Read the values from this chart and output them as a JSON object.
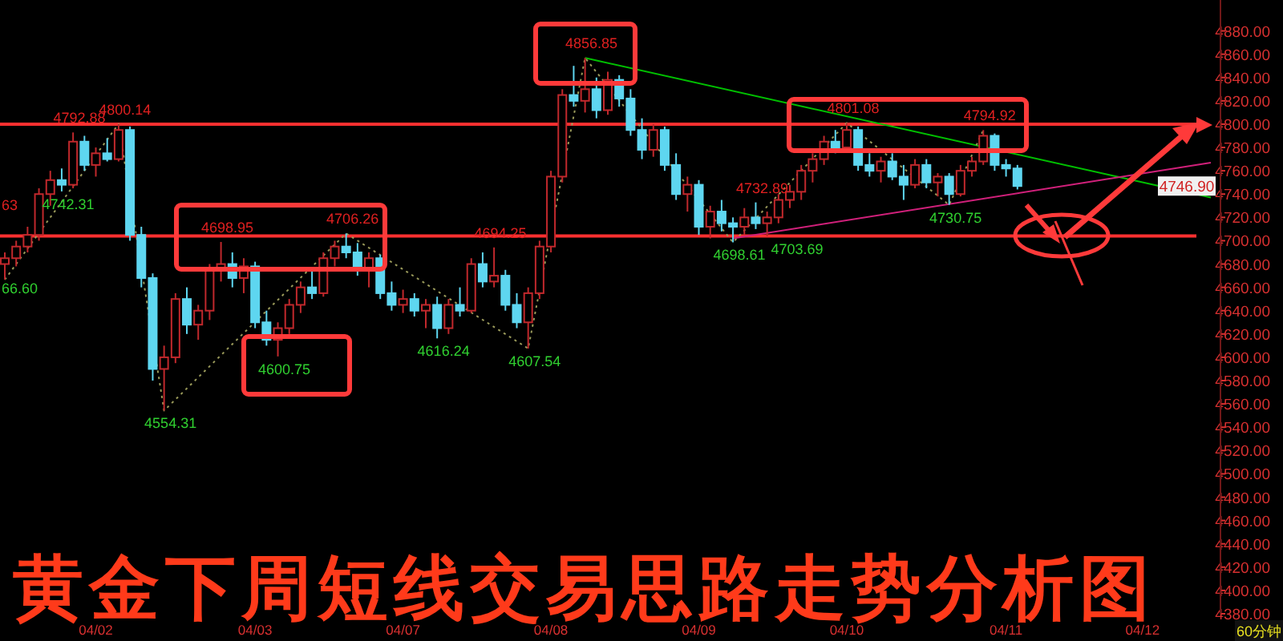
{
  "chart_data": {
    "type": "candlestick",
    "title": "黄金下周短线交易思路走势分析图",
    "categories": [
      null,
      null,
      null,
      null,
      null,
      null,
      null,
      null,
      "04/02",
      null,
      null,
      null,
      null,
      null,
      null,
      null,
      null,
      null,
      null,
      null,
      null,
      null,
      "04/03",
      null,
      null,
      null,
      null,
      null,
      null,
      null,
      null,
      null,
      null,
      null,
      null,
      "04/07",
      null,
      null,
      null,
      null,
      null,
      null,
      null,
      null,
      null,
      null,
      null,
      null,
      "04/08",
      null,
      null,
      null,
      null,
      null,
      null,
      null,
      null,
      null,
      null,
      null,
      null,
      "04/09",
      null,
      null,
      null,
      null,
      null,
      null,
      null,
      null,
      null,
      null,
      null,
      null,
      "04/10",
      null,
      null,
      null,
      null,
      null,
      null,
      null,
      null,
      null,
      null,
      null,
      null,
      null,
      "04/11",
      null,
      null,
      null,
      null,
      null,
      null,
      null,
      null,
      null,
      null,
      null,
      "04/12",
      null,
      null,
      null,
      null,
      null,
      null
    ],
    "ohlc": [
      [
        4680,
        4690,
        4666.6,
        4685
      ],
      [
        4685,
        4700,
        4678,
        4695
      ],
      [
        4695,
        4712,
        4690,
        4705
      ],
      [
        4705,
        4745,
        4700,
        4740
      ],
      [
        4740,
        4760,
        4730,
        4752
      ],
      [
        4752,
        4762,
        4742.31,
        4748
      ],
      [
        4748,
        4792.88,
        4745,
        4785
      ],
      [
        4785,
        4790,
        4760,
        4765
      ],
      [
        4765,
        4780,
        4755,
        4775
      ],
      [
        4775,
        4788,
        4768,
        4770
      ],
      [
        4770,
        4800.14,
        4768,
        4795
      ],
      [
        4795,
        4798,
        4700,
        4705
      ],
      [
        4705,
        4712,
        4660,
        4668
      ],
      [
        4668,
        4672,
        4580,
        4590
      ],
      [
        4590,
        4610,
        4554.31,
        4600
      ],
      [
        4600,
        4655,
        4595,
        4650
      ],
      [
        4650,
        4660,
        4620,
        4628
      ],
      [
        4628,
        4645,
        4615,
        4640
      ],
      [
        4640,
        4680,
        4632,
        4675
      ],
      [
        4675,
        4698.95,
        4665,
        4680
      ],
      [
        4680,
        4690,
        4660,
        4668
      ],
      [
        4668,
        4685,
        4655,
        4678
      ],
      [
        4678,
        4682,
        4625,
        4630
      ],
      [
        4630,
        4640,
        4610,
        4615
      ],
      [
        4615,
        4630,
        4600.75,
        4625
      ],
      [
        4625,
        4650,
        4620,
        4645
      ],
      [
        4645,
        4665,
        4638,
        4660
      ],
      [
        4660,
        4675,
        4650,
        4655
      ],
      [
        4655,
        4690,
        4652,
        4685
      ],
      [
        4685,
        4700,
        4678,
        4695
      ],
      [
        4695,
        4706.26,
        4685,
        4690
      ],
      [
        4690,
        4698,
        4670,
        4675
      ],
      [
        4675,
        4690,
        4660,
        4685
      ],
      [
        4685,
        4688,
        4650,
        4655
      ],
      [
        4655,
        4665,
        4640,
        4645
      ],
      [
        4645,
        4658,
        4638,
        4650
      ],
      [
        4650,
        4655,
        4635,
        4640
      ],
      [
        4640,
        4650,
        4625,
        4645
      ],
      [
        4645,
        4652,
        4616.24,
        4625
      ],
      [
        4625,
        4650,
        4620,
        4645
      ],
      [
        4645,
        4660,
        4635,
        4640
      ],
      [
        4640,
        4685,
        4638,
        4680
      ],
      [
        4680,
        4690,
        4660,
        4665
      ],
      [
        4665,
        4694.25,
        4660,
        4670
      ],
      [
        4670,
        4675,
        4640,
        4645
      ],
      [
        4645,
        4655,
        4625,
        4630
      ],
      [
        4630,
        4660,
        4607.54,
        4655
      ],
      [
        4655,
        4700,
        4650,
        4695
      ],
      [
        4695,
        4760,
        4690,
        4755
      ],
      [
        4755,
        4830,
        4750,
        4825
      ],
      [
        4825,
        4850,
        4815,
        4820
      ],
      [
        4820,
        4856.85,
        4810,
        4830
      ],
      [
        4830,
        4840,
        4805,
        4812
      ],
      [
        4812,
        4845,
        4808,
        4838
      ],
      [
        4838,
        4842,
        4815,
        4822
      ],
      [
        4822,
        4830,
        4790,
        4795
      ],
      [
        4795,
        4805,
        4770,
        4778
      ],
      [
        4778,
        4800,
        4772,
        4795
      ],
      [
        4795,
        4798,
        4760,
        4765
      ],
      [
        4765,
        4775,
        4735,
        4740
      ],
      [
        4740,
        4755,
        4725,
        4748
      ],
      [
        4748,
        4752,
        4705,
        4712
      ],
      [
        4712,
        4730,
        4702,
        4725
      ],
      [
        4725,
        4735,
        4708,
        4715
      ],
      [
        4715,
        4720,
        4698.61,
        4712
      ],
      [
        4712,
        4728,
        4705,
        4720
      ],
      [
        4720,
        4732.89,
        4710,
        4715
      ],
      [
        4715,
        4725,
        4703.69,
        4720
      ],
      [
        4720,
        4740,
        4715,
        4735
      ],
      [
        4735,
        4748,
        4728,
        4742
      ],
      [
        4742,
        4765,
        4735,
        4760
      ],
      [
        4760,
        4775,
        4750,
        4770
      ],
      [
        4770,
        4790,
        4765,
        4785
      ],
      [
        4785,
        4795,
        4775,
        4780
      ],
      [
        4780,
        4801.08,
        4778,
        4795
      ],
      [
        4795,
        4798,
        4760,
        4765
      ],
      [
        4765,
        4775,
        4755,
        4760
      ],
      [
        4760,
        4772,
        4750,
        4768
      ],
      [
        4768,
        4775,
        4752,
        4755
      ],
      [
        4755,
        4765,
        4735,
        4748
      ],
      [
        4748,
        4770,
        4745,
        4765
      ],
      [
        4765,
        4770,
        4745,
        4750
      ],
      [
        4750,
        4758,
        4738,
        4755
      ],
      [
        4755,
        4758,
        4730.75,
        4740
      ],
      [
        4740,
        4765,
        4738,
        4760
      ],
      [
        4760,
        4772,
        4755,
        4768
      ],
      [
        4768,
        4794.92,
        4765,
        4790
      ],
      [
        4790,
        4792,
        4760,
        4765
      ],
      [
        4765,
        4770,
        4755,
        4762
      ],
      [
        4762,
        4765,
        4744,
        4746.9
      ],
      null,
      null,
      null,
      null,
      null,
      null,
      null,
      null,
      null,
      null,
      null,
      null,
      null,
      null,
      null,
      null,
      null
    ],
    "series": [
      {
        "type": "line",
        "color": "#00c000",
        "line_style": "solid",
        "values": [
          null,
          null,
          null,
          null,
          null,
          null,
          null,
          null,
          null,
          null,
          null,
          null,
          null,
          null,
          null,
          null,
          null,
          null,
          null,
          null,
          null,
          null,
          null,
          null,
          null,
          null,
          null,
          null,
          null,
          null,
          null,
          null,
          null,
          null,
          null,
          null,
          null,
          null,
          null,
          null,
          null,
          null,
          null,
          null,
          null,
          null,
          null,
          null,
          null,
          null,
          null,
          4856.85,
          null,
          null,
          null,
          null,
          null,
          null,
          null,
          null,
          null,
          null,
          null,
          null,
          null,
          null,
          null,
          null,
          null,
          null,
          null,
          null,
          null,
          null,
          null,
          null,
          null,
          null,
          null,
          null,
          null,
          null,
          null,
          null,
          null,
          null,
          null,
          null,
          null,
          null,
          null,
          null,
          null,
          null,
          null,
          null,
          null,
          null,
          null,
          null,
          null,
          null,
          null,
          null,
          null,
          null,
          4737
        ]
      },
      {
        "type": "line",
        "color": "#d0207a",
        "line_style": "solid",
        "values": [
          null,
          null,
          null,
          null,
          null,
          null,
          null,
          null,
          null,
          null,
          null,
          null,
          null,
          null,
          null,
          null,
          null,
          null,
          null,
          null,
          null,
          null,
          null,
          null,
          null,
          null,
          null,
          null,
          null,
          null,
          null,
          null,
          null,
          null,
          null,
          null,
          null,
          null,
          null,
          null,
          null,
          null,
          null,
          null,
          null,
          null,
          null,
          null,
          null,
          null,
          null,
          null,
          null,
          null,
          null,
          null,
          null,
          null,
          null,
          null,
          null,
          null,
          null,
          null,
          4702,
          null,
          null,
          null,
          null,
          null,
          null,
          null,
          null,
          null,
          null,
          null,
          null,
          null,
          null,
          null,
          null,
          null,
          null,
          null,
          null,
          null,
          null,
          null,
          null,
          null,
          null,
          null,
          null,
          null,
          null,
          null,
          null,
          null,
          null,
          null,
          null,
          null,
          null,
          null,
          null,
          null,
          4767
        ]
      },
      {
        "type": "line",
        "color": "#9a9a5a",
        "line_style": "dotted",
        "values": [
          4666.6,
          null,
          null,
          null,
          null,
          null,
          null,
          null,
          null,
          null,
          4800.14,
          null,
          null,
          null,
          4554.31,
          null,
          null,
          null,
          null,
          null,
          null,
          null,
          null,
          null,
          null,
          null,
          null,
          null,
          null,
          null,
          4706.26,
          null,
          null,
          null,
          null,
          null,
          null,
          null,
          null,
          null,
          null,
          null,
          null,
          null,
          null,
          null,
          4607.54,
          null,
          null,
          null,
          null,
          4856.85,
          null,
          null,
          null,
          null,
          null,
          null,
          null,
          null,
          null,
          null,
          null,
          null,
          4698.61,
          null,
          null,
          null,
          null,
          null,
          null,
          null,
          null,
          null,
          4801.08,
          null,
          null,
          null,
          null,
          null,
          null,
          null,
          null,
          4730.75,
          null,
          null,
          4794.92,
          null,
          null,
          null,
          null,
          null,
          null,
          null,
          null,
          null,
          null,
          null,
          null,
          null,
          null,
          null,
          null,
          null,
          null,
          null,
          null
        ]
      }
    ],
    "ref_lines": [
      {
        "axis": "y",
        "value": 4704,
        "color": "#ff3030"
      },
      {
        "axis": "y",
        "value": 4800,
        "color": "#ff3030"
      }
    ],
    "ylim": [
      4380,
      4906.5
    ],
    "yticks": [
      {
        "value": 4380,
        "label": "4380.00"
      },
      {
        "value": 4400,
        "label": "4400.00"
      },
      {
        "value": 4420,
        "label": "4420.00"
      },
      {
        "value": 4440,
        "label": "4440.00"
      },
      {
        "value": 4460,
        "label": "4460.00"
      },
      {
        "value": 4480,
        "label": "4480.00"
      },
      {
        "value": 4500,
        "label": "4500.00"
      },
      {
        "value": 4520,
        "label": "4520.00"
      },
      {
        "value": 4540,
        "label": "4540.00"
      },
      {
        "value": 4560,
        "label": "4560.00"
      },
      {
        "value": 4580,
        "label": "4580.00"
      },
      {
        "value": 4600,
        "label": "4600.00"
      },
      {
        "value": 4620,
        "label": "4620.00"
      },
      {
        "value": 4640,
        "label": "4640.00"
      },
      {
        "value": 4660,
        "label": "4660.00"
      },
      {
        "value": 4680,
        "label": "4680.00"
      },
      {
        "value": 4700,
        "label": "4700.00"
      },
      {
        "value": 4720,
        "label": "4720.00"
      },
      {
        "value": 4740,
        "label": "4740.00"
      },
      {
        "value": 4760,
        "label": "4760.00"
      },
      {
        "value": 4780,
        "label": "4780.00"
      },
      {
        "value": 4800,
        "label": "4800.00"
      },
      {
        "value": 4820,
        "label": "4820.00"
      },
      {
        "value": 4840,
        "label": "4840.00"
      },
      {
        "value": 4860,
        "label": "4860.00"
      },
      {
        "value": 4880,
        "label": "4880.00"
      }
    ],
    "annotations": [
      "66.60",
      {
        "text": "4792.88",
        "y": 4792.88
      },
      {
        "text": "4742.31",
        "y": 4742.31
      },
      {
        "text": "4800.14",
        "y": 4800.14
      },
      {
        "text": "4554.31",
        "y": 4554.31
      },
      {
        "text": "4698.95",
        "y": 4698.95
      },
      {
        "text": "4600.75",
        "y": 4600.75
      },
      {
        "text": "4706.26",
        "y": 4706.26
      },
      {
        "text": "4616.24",
        "y": 4616.24
      },
      {
        "text": "4694.25",
        "y": 4694.25
      },
      {
        "text": "4607.54",
        "y": 4607.54
      },
      {
        "text": "4856.85",
        "y": 4856.85
      },
      {
        "text": "4732.89",
        "y": 4732.89
      },
      {
        "text": "4698.61",
        "y": 4698.61
      },
      {
        "text": "4703.69",
        "y": 4703.69
      },
      {
        "text": "4801.08",
        "y": 4801.08
      },
      {
        "text": "4730.75",
        "y": 4730.75
      },
      {
        "text": "4794.92",
        "y": 4794.92
      },
      {
        "text": "4746.90",
        "y": 4746.9
      },
      "63",
      "60分钟"
    ]
  }
}
